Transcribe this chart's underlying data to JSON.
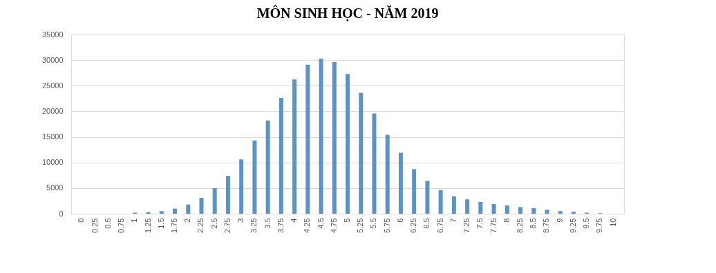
{
  "chart_data": {
    "type": "bar",
    "title": "MÔN SINH HỌC - NĂM 2019",
    "categories": [
      "0",
      "0.25",
      "0.5",
      "0.75",
      "1",
      "1.25",
      "1.5",
      "1.75",
      "2",
      "2.25",
      "2.5",
      "2.75",
      "3",
      "3.25",
      "3.5",
      "3.75",
      "4",
      "4.25",
      "4.5",
      "4.75",
      "5",
      "5.25",
      "5.5",
      "5.75",
      "6",
      "6.25",
      "6.5",
      "6.75",
      "7",
      "7.25",
      "7.5",
      "7.75",
      "8",
      "8.25",
      "8.5",
      "8.75",
      "9",
      "9.25",
      "9.5",
      "9.75",
      "10"
    ],
    "values": [
      0,
      0,
      0,
      0,
      200,
      300,
      500,
      1000,
      1800,
      3100,
      5000,
      7400,
      10600,
      14300,
      18200,
      22600,
      26200,
      29100,
      30300,
      29600,
      27300,
      23600,
      19600,
      15400,
      11900,
      8700,
      6400,
      4600,
      3400,
      2800,
      2300,
      1900,
      1600,
      1300,
      1100,
      800,
      500,
      400,
      200,
      100,
      0
    ],
    "color": "#5b93c7",
    "ylim": [
      0,
      35000
    ],
    "yticks": [
      0,
      5000,
      10000,
      15000,
      20000,
      25000,
      30000,
      35000
    ],
    "grid": "y"
  }
}
